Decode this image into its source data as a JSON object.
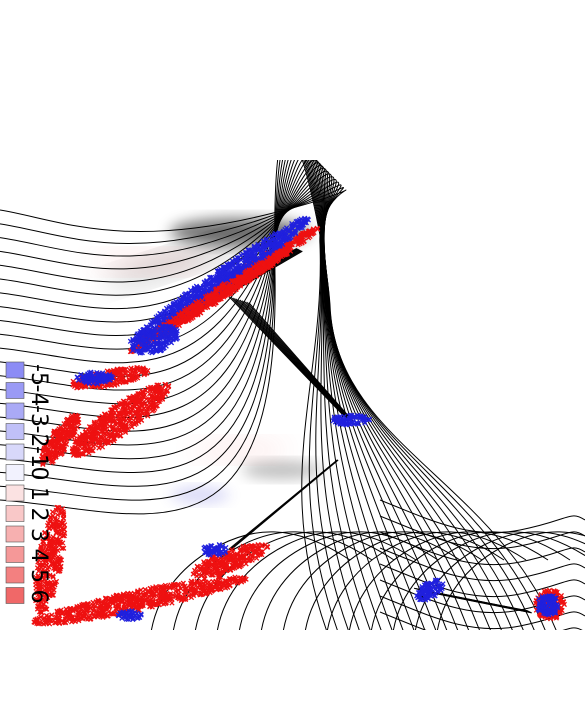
{
  "chart_data": {
    "type": "heatmap",
    "title": "",
    "xlabel": "",
    "ylabel": "",
    "grid": false,
    "legend_position": "left",
    "legend": {
      "entries": [
        {
          "label": "-5",
          "color": "#8c8cf5"
        },
        {
          "label": "-4",
          "color": "#9a9af5"
        },
        {
          "label": "-3",
          "color": "#aaaaf6"
        },
        {
          "label": "-2",
          "color": "#c0c0f8"
        },
        {
          "label": "-1",
          "color": "#d8d8fa"
        },
        {
          "label": "0",
          "color": "#f2f2fe"
        },
        {
          "label": "1",
          "color": "#fbe2e2"
        },
        {
          "label": "2",
          "color": "#f9c8c8"
        },
        {
          "label": "3",
          "color": "#f7b0b0"
        },
        {
          "label": "4",
          "color": "#f59898"
        },
        {
          "label": "5",
          "color": "#f38080"
        },
        {
          "label": "6",
          "color": "#f06868"
        }
      ]
    },
    "colors": {
      "negative": "#2020dd",
      "positive": "#ee1111",
      "contour": "#000000",
      "shadow": "#222222"
    }
  }
}
